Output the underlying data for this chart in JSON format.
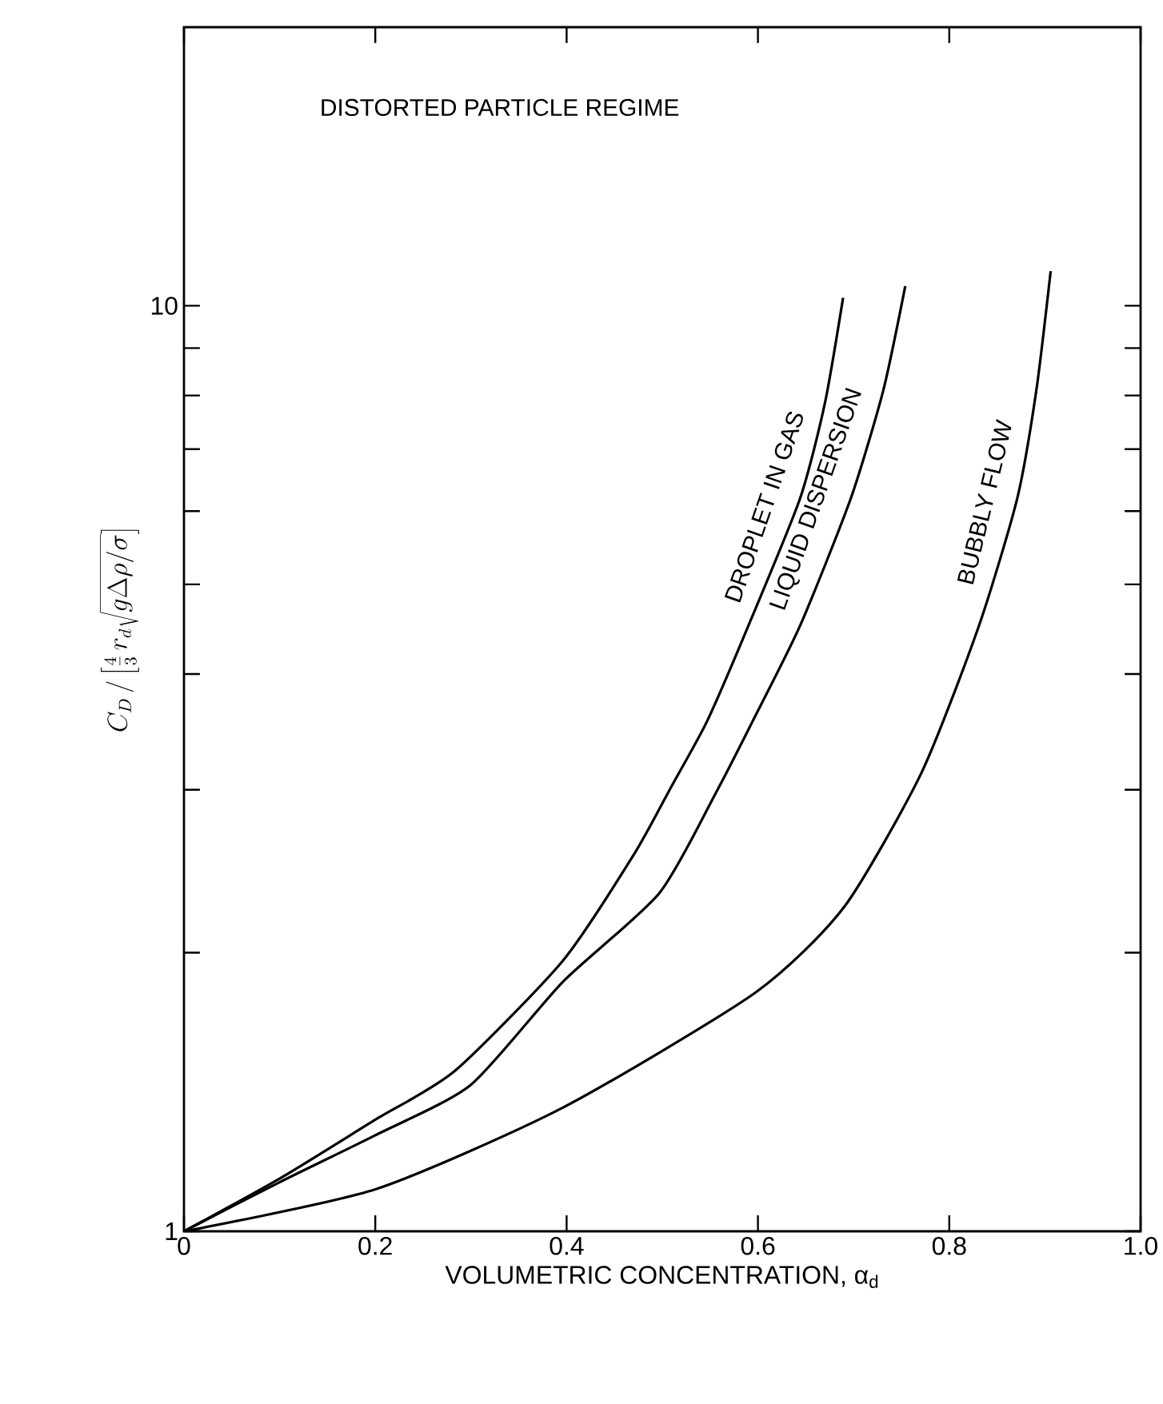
{
  "chart_data": {
    "type": "line",
    "xlabel": "VOLUMETRIC CONCENTRATION, α$_{d}$",
    "ylabel": "C_D \\,/\\left[\\frac{4}{3}\\, r_d \\sqrt{g \\Delta \\rho / \\sigma}\\right]",
    "annotations": [
      "DISTORTED PARTICLE REGIME"
    ],
    "log": "y",
    "xlim": [
      0,
      1
    ],
    "ylim": [
      1,
      20
    ],
    "xticks": [
      0,
      0.2,
      0.4,
      0.6,
      0.8,
      {
        "value": 1,
        "label": "1.0"
      }
    ],
    "yticks": [
      1,
      {
        "value": 2,
        "label": null
      },
      {
        "value": 3,
        "label": null
      },
      {
        "value": 4,
        "label": null
      },
      {
        "value": 5,
        "label": null
      },
      {
        "value": 6,
        "label": null
      },
      {
        "value": 7,
        "label": null
      },
      {
        "value": 8,
        "label": null
      },
      {
        "value": 9,
        "label": null
      },
      10
    ],
    "marker": "none",
    "line_style": "solid",
    "series": [
      {
        "name": "DROPLET IN GAS",
        "color": "#000000",
        "x": [
          0,
          0.1,
          0.2,
          0.283,
          0.396,
          0.47,
          0.51,
          0.547,
          0.59,
          0.644,
          0.67,
          0.689
        ],
        "values": [
          1,
          1.14,
          1.32,
          1.49,
          1.96,
          2.55,
          3.03,
          3.56,
          4.51,
          6.19,
          7.85,
          10.2
        ]
      },
      {
        "name": "LIQUID DISPERSION",
        "color": "#000000",
        "x": [
          0,
          0.1,
          0.2,
          0.3,
          0.396,
          0.497,
          0.557,
          0.594,
          0.644,
          0.697,
          0.731,
          0.754
        ],
        "values": [
          1,
          1.13,
          1.27,
          1.44,
          1.86,
          2.32,
          2.99,
          3.55,
          4.51,
          6.19,
          8.1,
          10.5
        ]
      },
      {
        "name": "BUBBLY FLOW",
        "color": "#000000",
        "x": [
          0,
          0.2,
          0.396,
          0.597,
          0.69,
          0.771,
          0.831,
          0.871,
          0.891,
          0.906
        ],
        "values": [
          1,
          1.11,
          1.36,
          1.81,
          2.24,
          3.13,
          4.51,
          6.19,
          8.1,
          10.9
        ]
      }
    ]
  }
}
